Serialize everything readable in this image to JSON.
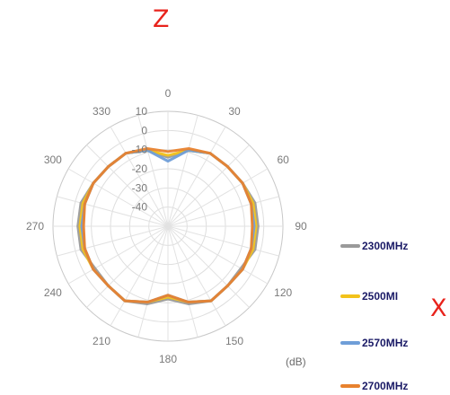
{
  "axis_letters": {
    "top": "Z",
    "right": "X"
  },
  "unit_label": "(dB)",
  "chart_data": {
    "type": "polar-line",
    "angle_labels": [
      "0",
      "30",
      "60",
      "90",
      "120",
      "150",
      "180",
      "210",
      "240",
      "270",
      "300",
      "330"
    ],
    "radial_labels": [
      "10",
      "0",
      "-10",
      "-20",
      "-30",
      "-40"
    ],
    "r_range": [
      -50,
      10
    ],
    "grid": true,
    "legend_position": "right",
    "angles": [
      0,
      15,
      30,
      45,
      60,
      75,
      90,
      105,
      120,
      135,
      150,
      165,
      180,
      195,
      210,
      225,
      240,
      255,
      270,
      285,
      300,
      315,
      330,
      345
    ],
    "series": [
      {
        "name": "2300MHz",
        "color": "#9a9a9a",
        "values": [
          -14,
          -9,
          -6,
          -6,
          -5,
          -3,
          -3,
          -3,
          -6,
          -6,
          -5,
          -8,
          -12,
          -8,
          -5,
          -6,
          -6,
          -3,
          -3,
          -3,
          -5,
          -6,
          -6,
          -9
        ]
      },
      {
        "name": "2500MI",
        "color": "#f2c21b",
        "values": [
          -13,
          -9,
          -6,
          -6,
          -5,
          -4,
          -4,
          -4,
          -5,
          -6,
          -5,
          -9,
          -13,
          -9,
          -5,
          -6,
          -5,
          -4,
          -4,
          -4,
          -5,
          -6,
          -6,
          -9
        ]
      },
      {
        "name": "2570MHz",
        "color": "#6f9ed8",
        "values": [
          -16,
          -9,
          -6,
          -6,
          -5,
          -5,
          -5,
          -5,
          -5,
          -6,
          -5,
          -9,
          -14,
          -9,
          -5,
          -6,
          -5,
          -5,
          -5,
          -5,
          -5,
          -6,
          -6,
          -9
        ]
      },
      {
        "name": "2700MHz",
        "color": "#e8822e",
        "values": [
          -11,
          -8,
          -6,
          -6,
          -5,
          -5,
          -6,
          -5,
          -5,
          -6,
          -5,
          -9,
          -14,
          -9,
          -5,
          -6,
          -5,
          -5,
          -6,
          -5,
          -5,
          -6,
          -6,
          -8
        ]
      }
    ]
  }
}
